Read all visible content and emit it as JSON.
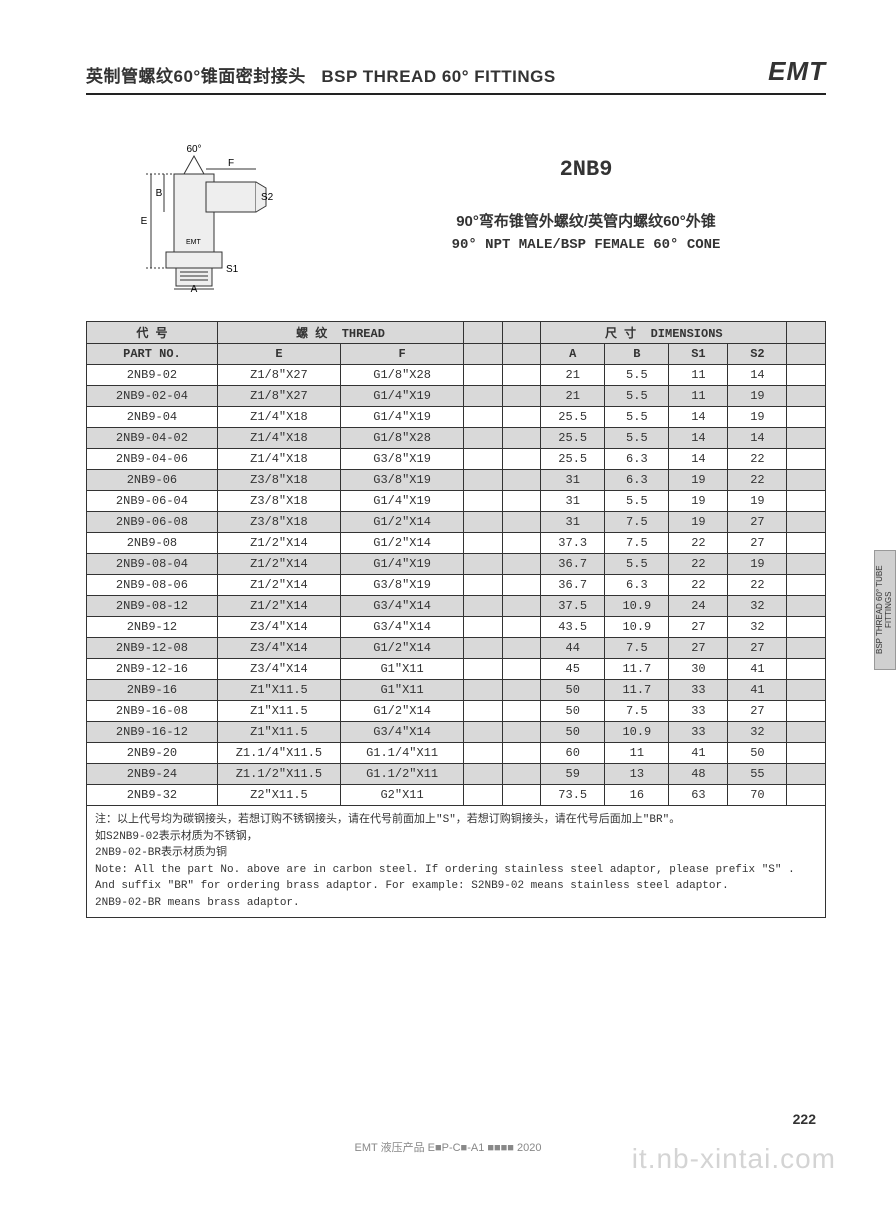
{
  "header": {
    "title_cn": "英制管螺纹60°锥面密封接头",
    "title_en": "BSP THREAD 60° FITTINGS",
    "logo": "EMT"
  },
  "part": {
    "code": "2NB9",
    "desc_cn": "90°弯布锥管外螺纹/英管内螺纹60°外锥",
    "desc_en": "90° NPT MALE/BSP FEMALE 60° CONE"
  },
  "diagram": {
    "labels": {
      "angle": "60°",
      "F": "F",
      "B": "B",
      "E": "E",
      "A": "A",
      "S1": "S1",
      "S2": "S2",
      "brand": "EMT"
    }
  },
  "table": {
    "head1": {
      "left": "代 号",
      "thread_cn": "螺 纹",
      "thread_en": "THREAD",
      "dim_cn": "尺 寸",
      "dim_en": "DIMENSIONS"
    },
    "head2": {
      "part": "PART NO.",
      "E": "E",
      "F": "F",
      "A": "A",
      "B": "B",
      "S1": "S1",
      "S2": "S2"
    },
    "rows": [
      {
        "p": "2NB9-02",
        "e": "Z1/8″X27",
        "f": "G1/8″X28",
        "a": "21",
        "b": "5.5",
        "s1": "11",
        "s2": "14"
      },
      {
        "p": "2NB9-02-04",
        "e": "Z1/8″X27",
        "f": "G1/4″X19",
        "a": "21",
        "b": "5.5",
        "s1": "11",
        "s2": "19"
      },
      {
        "p": "2NB9-04",
        "e": "Z1/4″X18",
        "f": "G1/4″X19",
        "a": "25.5",
        "b": "5.5",
        "s1": "14",
        "s2": "19"
      },
      {
        "p": "2NB9-04-02",
        "e": "Z1/4″X18",
        "f": "G1/8″X28",
        "a": "25.5",
        "b": "5.5",
        "s1": "14",
        "s2": "14"
      },
      {
        "p": "2NB9-04-06",
        "e": "Z1/4″X18",
        "f": "G3/8″X19",
        "a": "25.5",
        "b": "6.3",
        "s1": "14",
        "s2": "22"
      },
      {
        "p": "2NB9-06",
        "e": "Z3/8″X18",
        "f": "G3/8″X19",
        "a": "31",
        "b": "6.3",
        "s1": "19",
        "s2": "22"
      },
      {
        "p": "2NB9-06-04",
        "e": "Z3/8″X18",
        "f": "G1/4″X19",
        "a": "31",
        "b": "5.5",
        "s1": "19",
        "s2": "19"
      },
      {
        "p": "2NB9-06-08",
        "e": "Z3/8″X18",
        "f": "G1/2″X14",
        "a": "31",
        "b": "7.5",
        "s1": "19",
        "s2": "27"
      },
      {
        "p": "2NB9-08",
        "e": "Z1/2″X14",
        "f": "G1/2″X14",
        "a": "37.3",
        "b": "7.5",
        "s1": "22",
        "s2": "27"
      },
      {
        "p": "2NB9-08-04",
        "e": "Z1/2″X14",
        "f": "G1/4″X19",
        "a": "36.7",
        "b": "5.5",
        "s1": "22",
        "s2": "19"
      },
      {
        "p": "2NB9-08-06",
        "e": "Z1/2″X14",
        "f": "G3/8″X19",
        "a": "36.7",
        "b": "6.3",
        "s1": "22",
        "s2": "22"
      },
      {
        "p": "2NB9-08-12",
        "e": "Z1/2″X14",
        "f": "G3/4″X14",
        "a": "37.5",
        "b": "10.9",
        "s1": "24",
        "s2": "32"
      },
      {
        "p": "2NB9-12",
        "e": "Z3/4″X14",
        "f": "G3/4″X14",
        "a": "43.5",
        "b": "10.9",
        "s1": "27",
        "s2": "32"
      },
      {
        "p": "2NB9-12-08",
        "e": "Z3/4″X14",
        "f": "G1/2″X14",
        "a": "44",
        "b": "7.5",
        "s1": "27",
        "s2": "27"
      },
      {
        "p": "2NB9-12-16",
        "e": "Z3/4″X14",
        "f": "G1″X11",
        "a": "45",
        "b": "11.7",
        "s1": "30",
        "s2": "41"
      },
      {
        "p": "2NB9-16",
        "e": "Z1″X11.5",
        "f": "G1″X11",
        "a": "50",
        "b": "11.7",
        "s1": "33",
        "s2": "41"
      },
      {
        "p": "2NB9-16-08",
        "e": "Z1″X11.5",
        "f": "G1/2″X14",
        "a": "50",
        "b": "7.5",
        "s1": "33",
        "s2": "27"
      },
      {
        "p": "2NB9-16-12",
        "e": "Z1″X11.5",
        "f": "G3/4″X14",
        "a": "50",
        "b": "10.9",
        "s1": "33",
        "s2": "32"
      },
      {
        "p": "2NB9-20",
        "e": "Z1.1/4″X11.5",
        "f": "G1.1/4″X11",
        "a": "60",
        "b": "11",
        "s1": "41",
        "s2": "50"
      },
      {
        "p": "2NB9-24",
        "e": "Z1.1/2″X11.5",
        "f": "G1.1/2″X11",
        "a": "59",
        "b": "13",
        "s1": "48",
        "s2": "55"
      },
      {
        "p": "2NB9-32",
        "e": "Z2″X11.5",
        "f": "G2″X11",
        "a": "73.5",
        "b": "16",
        "s1": "63",
        "s2": "70"
      }
    ]
  },
  "notes": {
    "cn1": "注：以上代号均为碳钢接头，若想订购不锈钢接头，请在代号前面加上\"S\"，若想订购铜接头，请在代号后面加上\"BR\"。",
    "cn2": "如S2NB9-02表示材质为不锈钢，",
    "cn3": "2NB9-02-BR表示材质为铜",
    "en1": "Note: All the part No. above are in carbon steel. If ordering stainless steel adaptor, please prefix \"S\" .",
    "en2": "And suffix \"BR\" for ordering brass adaptor. For example: S2NB9-02  means stainless steel adaptor.",
    "en3": "2NB9-02-BR means brass adaptor."
  },
  "side_tab": "BSP THREAD 60°\nTUBE FITTINGS",
  "page_num": "222",
  "footer": "EMT 液压产品 E■P-C■-A1 ■■■■ 2020",
  "watermark": "it.nb-xintai.com"
}
